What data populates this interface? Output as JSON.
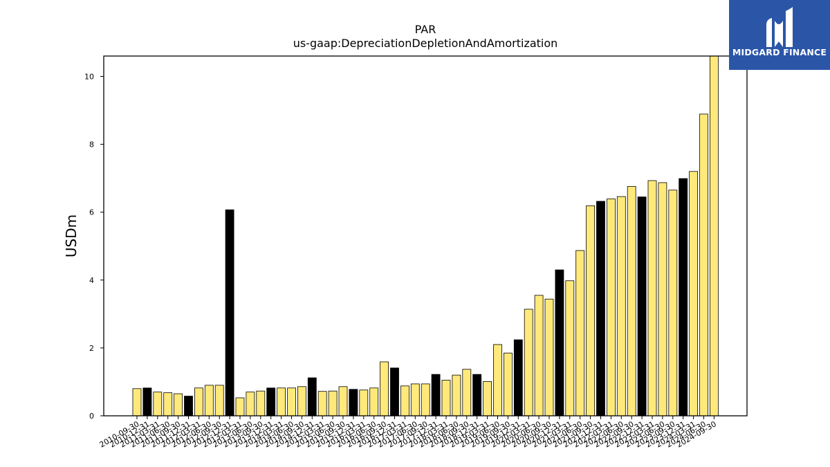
{
  "chart_data": {
    "type": "bar",
    "title": "PAR",
    "subtitle": "us-gaap:DepreciationDepletionAndAmortization",
    "xlabel": "",
    "ylabel": "USDm",
    "ylim": [
      0,
      10.6
    ],
    "yticks": [
      0,
      2,
      4,
      6,
      8,
      10
    ],
    "grid": false,
    "legend": "none",
    "colors": {
      "quarter": "#ffe97a",
      "fiscal_year_end": "#000000",
      "edge": "#000000"
    },
    "categories": [
      "2010-09-30",
      "2010-12-31",
      "2011-03-31",
      "2011-06-30",
      "2011-09-30",
      "2011-12-31",
      "2012-03-31",
      "2012-06-30",
      "2012-09-30",
      "2012-12-31",
      "2013-03-31",
      "2013-06-30",
      "2013-09-30",
      "2013-12-31",
      "2014-03-31",
      "2014-06-30",
      "2014-09-30",
      "2014-12-31",
      "2015-03-31",
      "2015-06-30",
      "2015-09-30",
      "2015-12-31",
      "2016-03-31",
      "2016-06-30",
      "2016-09-30",
      "2016-12-31",
      "2017-03-31",
      "2017-06-30",
      "2017-09-30",
      "2017-12-31",
      "2018-03-31",
      "2018-06-30",
      "2018-09-30",
      "2018-12-31",
      "2019-03-31",
      "2019-06-30",
      "2019-09-30",
      "2019-12-31",
      "2020-03-31",
      "2020-06-30",
      "2020-09-30",
      "2020-12-31",
      "2021-03-31",
      "2021-06-30",
      "2021-09-30",
      "2021-12-31",
      "2022-03-31",
      "2022-06-30",
      "2022-09-30",
      "2022-12-31",
      "2023-03-31",
      "2023-06-30",
      "2023-09-30",
      "2023-12-31",
      "2024-03-31",
      "2024-06-30",
      "2024-09-30"
    ],
    "values": [
      0.8,
      0.82,
      0.7,
      0.68,
      0.65,
      0.58,
      0.82,
      0.9,
      0.9,
      6.07,
      0.53,
      0.7,
      0.73,
      0.82,
      0.82,
      0.82,
      0.86,
      1.12,
      0.72,
      0.73,
      0.86,
      0.78,
      0.76,
      0.82,
      1.59,
      1.41,
      0.88,
      0.94,
      0.94,
      1.22,
      1.05,
      1.2,
      1.37,
      1.22,
      1.01,
      2.1,
      1.85,
      2.24,
      3.14,
      3.55,
      3.44,
      4.3,
      3.98,
      4.87,
      6.19,
      6.32,
      6.39,
      6.46,
      6.76,
      6.45,
      6.93,
      6.87,
      6.65,
      6.99,
      7.2,
      8.89,
      10.6
    ],
    "annual": [
      false,
      true,
      false,
      false,
      false,
      true,
      false,
      false,
      false,
      true,
      false,
      false,
      false,
      true,
      false,
      false,
      false,
      true,
      false,
      false,
      false,
      true,
      false,
      false,
      false,
      true,
      false,
      false,
      false,
      true,
      false,
      false,
      false,
      true,
      false,
      false,
      false,
      true,
      false,
      false,
      false,
      true,
      false,
      false,
      false,
      true,
      false,
      false,
      false,
      true,
      false,
      false,
      false,
      true,
      false,
      false,
      false
    ]
  },
  "logo": {
    "name": "MIDGARD FINANCE",
    "icon": "midgard-logo-icon",
    "background": "#2b56a8"
  }
}
